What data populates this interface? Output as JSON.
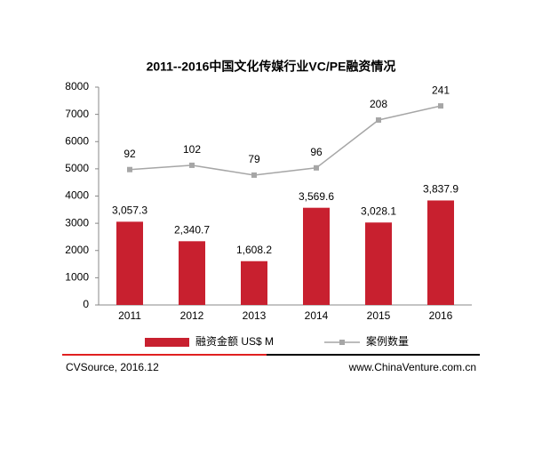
{
  "chart_data": {
    "type": "bar-line",
    "title": "2011--2016中国文化传媒行业VC/PE融资情况",
    "categories": [
      "2011",
      "2012",
      "2013",
      "2014",
      "2015",
      "2016"
    ],
    "series": [
      {
        "name": "融资金额 US$ M",
        "type": "bar",
        "color": "#c8202f",
        "values": [
          3057.3,
          2340.7,
          1608.2,
          3569.6,
          3028.1,
          3837.9
        ],
        "value_labels": [
          "3,057.3",
          "2,340.7",
          "1,608.2",
          "3,569.6",
          "3,028.1",
          "3,837.9"
        ]
      },
      {
        "name": "案例数量",
        "type": "line",
        "axis": "y2",
        "color": "#a6a6a6",
        "values": [
          92,
          102,
          79,
          96,
          208,
          241
        ]
      }
    ],
    "ylim": [
      0,
      8000
    ],
    "yticks": [
      0,
      1000,
      2000,
      3000,
      4000,
      5000,
      6000,
      7000,
      8000
    ],
    "y2lim": [
      -225,
      285
    ],
    "source": "CVSource, 2016.12",
    "website": "www.ChinaVenture.com.cn"
  }
}
